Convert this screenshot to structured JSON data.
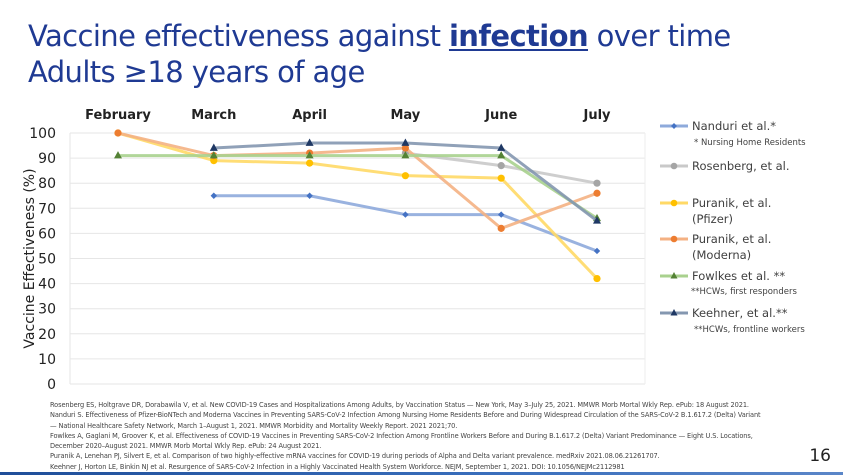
{
  "slide": {
    "title_prefix": "Vaccine effectiveness against ",
    "title_emphasis": "infection",
    "title_suffix": " over time",
    "subtitle": "Adults ≥18 years of age",
    "page_number": "16",
    "title_color": "#1f3a93"
  },
  "legend": {
    "items": [
      {
        "label": "Nanduri et al.*",
        "note": "* Nursing Home Residents"
      },
      {
        "label": "Rosenberg, et al.",
        "note": ""
      },
      {
        "label": "Puranik, et al.\n(Pfizer)",
        "note": ""
      },
      {
        "label": "Puranik, et al.\n(Moderna)",
        "note": ""
      },
      {
        "label": "Fowlkes et al. **",
        "note": "**HCWs, first responders"
      },
      {
        "label": "Keehner, et al.**",
        "note": "**HCWs, frontline workers"
      }
    ]
  },
  "references": [
    "Rosenberg ES, Holtgrave DR, Dorabawila V, et al. New COVID-19 Cases and Hospitalizations Among Adults, by Vaccination Status — New York, May 3–July 25, 2021. MMWR Morb Mortal Wkly Rep. ePub: 18 August 2021.",
    "Nanduri S. Effectiveness of Pfizer-BioNTech and Moderna Vaccines in Preventing SARS-CoV-2 Infection Among Nursing Home Residents Before and During Widespread Circulation of the SARS-CoV-2 B.1.617.2 (Delta) Variant",
    "— National Healthcare Safety Network, March 1–August 1, 2021. MMWR Morbidity and Mortality Weekly Report. 2021 2021;70.",
    "Fowlkes A, Gaglani M, Groover K, et al. Effectiveness of COVID-19 Vaccines in Preventing SARS-CoV-2 Infection Among Frontline Workers Before and During B.1.617.2 (Delta) Variant Predominance — Eight U.S. Locations,",
    "December 2020–August 2021. MMWR Morb Mortal Wkly Rep. ePub: 24 August 2021.",
    "Puranik A, Lenehan PJ, Silvert E, et al. Comparison of two highly-effective mRNA vaccines for COVID-19 during periods of Alpha and Delta variant prevalence. medRxiv 2021.08.06.21261707.",
    "Keehner J, Horton LE, Binkin NJ et al. Resurgence of SARS-CoV-2 Infection in a Highly Vaccinated Health System Workforce. NEJM, September 1, 2021. DOI: 10.1056/NEJMc2112981"
  ],
  "chart_data": {
    "type": "line",
    "title": "Vaccine effectiveness against infection over time — Adults ≥18 years of age",
    "xlabel": "",
    "ylabel": "Vaccine Effectiveness (%)",
    "categories": [
      "February",
      "March",
      "April",
      "May",
      "June",
      "July"
    ],
    "ylim": [
      0,
      100
    ],
    "yticks": [
      0,
      10,
      20,
      30,
      40,
      50,
      60,
      70,
      80,
      90,
      100
    ],
    "grid": true,
    "legend_position": "right",
    "series": [
      {
        "name": "Nanduri et al.*",
        "color": "#8eaadb",
        "marker_color": "#4472c4",
        "marker": "diamond",
        "values": [
          null,
          75,
          75,
          67.5,
          67.5,
          53
        ]
      },
      {
        "name": "Rosenberg, et al.",
        "color": "#c9c9c9",
        "marker_color": "#a5a5a5",
        "marker": "circle",
        "values": [
          null,
          null,
          null,
          92,
          87,
          80
        ]
      },
      {
        "name": "Puranik, et al. (Pfizer)",
        "color": "#ffd966",
        "marker_color": "#ffc000",
        "marker": "circle",
        "values": [
          100,
          89,
          88,
          83,
          82,
          42
        ]
      },
      {
        "name": "Puranik, et al. (Moderna)",
        "color": "#f4b183",
        "marker_color": "#ed7d31",
        "marker": "circle",
        "values": [
          100,
          91,
          92,
          94,
          62,
          76
        ]
      },
      {
        "name": "Fowlkes et al. **",
        "color": "#a9d18e",
        "marker_color": "#548235",
        "marker": "triangle",
        "values": [
          91,
          91,
          91,
          91,
          91,
          66
        ]
      },
      {
        "name": "Keehner, et al.**",
        "color": "#8497b0",
        "marker_color": "#1f3864",
        "marker": "triangle",
        "values": [
          null,
          94,
          96,
          96,
          94,
          65
        ]
      }
    ]
  }
}
